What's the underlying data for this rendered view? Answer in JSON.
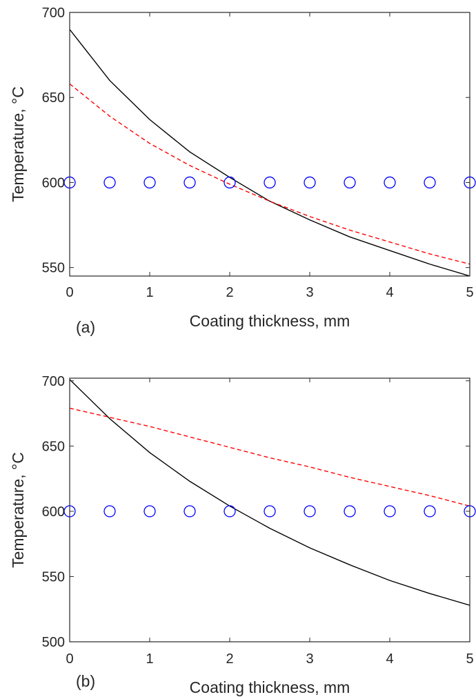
{
  "colors": {
    "series_1": "#000000",
    "series_2": "#ff0000",
    "series_3": "#0000ff",
    "axes": "#262626"
  },
  "chart_data": [
    {
      "type": "line",
      "panel_label": "(a)",
      "xlabel": "Coating thickness, mm",
      "ylabel": "Temperature, °C",
      "xlim": [
        0,
        5
      ],
      "ylim": [
        545,
        700
      ],
      "xticks": [
        0,
        1,
        2,
        3,
        4,
        5
      ],
      "yticks": [
        550,
        600,
        650,
        700
      ],
      "x": [
        0,
        0.5,
        1,
        1.5,
        2,
        2.5,
        3,
        3.5,
        4,
        4.5,
        5
      ],
      "series": [
        {
          "style": "solid",
          "color": "#000000",
          "values": [
            690,
            660,
            637,
            618,
            603,
            589,
            578,
            568,
            560,
            552,
            545
          ]
        },
        {
          "style": "dashed",
          "color": "#ff0000",
          "values": [
            658,
            639,
            623,
            610,
            599,
            589,
            580,
            572,
            565,
            558,
            552
          ]
        },
        {
          "style": "markers",
          "marker": "circle",
          "color": "#0000ff",
          "values": [
            600,
            600,
            600,
            600,
            600,
            600,
            600,
            600,
            600,
            600,
            600
          ]
        }
      ]
    },
    {
      "type": "line",
      "panel_label": "(b)",
      "xlabel": "Coating thickness, mm",
      "ylabel": "Temperature, °C",
      "xlim": [
        0,
        5
      ],
      "ylim": [
        500,
        702
      ],
      "xticks": [
        0,
        1,
        2,
        3,
        4,
        5
      ],
      "yticks": [
        500,
        550,
        600,
        650,
        700
      ],
      "x": [
        0,
        0.5,
        1,
        1.5,
        2,
        2.5,
        3,
        3.5,
        4,
        4.5,
        5
      ],
      "series": [
        {
          "style": "solid",
          "color": "#000000",
          "values": [
            701,
            671,
            645,
            623,
            604,
            587,
            572,
            559,
            547,
            537,
            528
          ]
        },
        {
          "style": "dashed",
          "color": "#ff0000",
          "values": [
            679,
            672,
            665,
            657,
            649,
            641,
            634,
            626,
            619,
            612,
            604
          ]
        },
        {
          "style": "markers",
          "marker": "circle",
          "color": "#0000ff",
          "values": [
            600,
            600,
            600,
            600,
            600,
            600,
            600,
            600,
            600,
            600,
            600
          ]
        }
      ]
    }
  ]
}
